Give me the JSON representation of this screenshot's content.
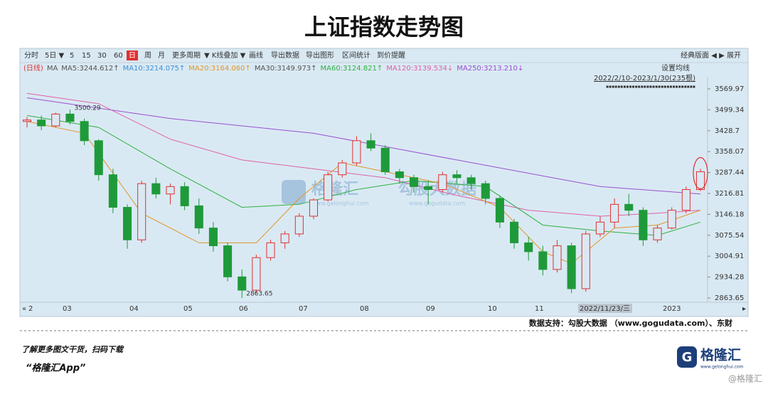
{
  "chart_data": {
    "type": "candlestick",
    "title": "上证指数走势图",
    "toolbar": [
      "分时",
      "5日 ▼",
      "5",
      "15",
      "30",
      "60",
      "日",
      "周",
      "月",
      "更多周期",
      "▼ K线叠加 ▼",
      "画线",
      "导出数据",
      "导出图形",
      "区间统计",
      "到价提醒"
    ],
    "toolbar_right": "经典版面 ◀ ▶ 展开",
    "ma_legend": [
      {
        "label": "(日线)",
        "color": "#e03030"
      },
      {
        "label": "MA",
        "color": "#555555"
      },
      {
        "label": "MA5:3244.612↑",
        "color": "#555555"
      },
      {
        "label": "MA10:3214.075↑",
        "color": "#3b8fd9"
      },
      {
        "label": "MA20:3164.060↑",
        "color": "#e0962a"
      },
      {
        "label": "MA30:3149.973↑",
        "color": "#555555"
      },
      {
        "label": "MA60:3124.821↑",
        "color": "#2fb040"
      },
      {
        "label": "MA120:3139.534↓",
        "color": "#e060a8"
      },
      {
        "label": "MA250:3213.210↓",
        "color": "#9a50d0"
      }
    ],
    "settings_label": "设置均线",
    "range_label": "2022/2/10-2023/1/30(235根)",
    "ylim": [
      2863.65,
      3569.97
    ],
    "yticks": [
      3569.97,
      3499.34,
      3428.7,
      3358.07,
      3287.44,
      3216.81,
      3146.18,
      3075.54,
      3004.91,
      2934.28,
      2863.65
    ],
    "x_labels": [
      "2",
      "03",
      "04",
      "05",
      "06",
      "07",
      "08",
      "09",
      "10",
      "11",
      "2022/11/23/三",
      "2023"
    ],
    "open": [
      3460,
      3465,
      3445,
      3485,
      3460,
      3395,
      3280,
      3170,
      3060,
      3250,
      3215,
      3240,
      3175,
      3100,
      3040,
      2935,
      2890,
      3000,
      3050,
      3080,
      3140,
      3195,
      3280,
      3320,
      3395,
      3370,
      3290,
      3270,
      3240,
      3230,
      3280,
      3270,
      3250,
      3200,
      3120,
      3050,
      3020,
      2960,
      3040,
      2895,
      3080,
      3120,
      3180,
      3160,
      3060,
      3100,
      3160,
      3230
    ],
    "high": [
      3475,
      3480,
      3490,
      3500.29,
      3470,
      3400,
      3300,
      3180,
      3260,
      3270,
      3250,
      3255,
      3200,
      3120,
      3050,
      2960,
      3010,
      3060,
      3090,
      3150,
      3200,
      3290,
      3330,
      3410,
      3420,
      3380,
      3300,
      3280,
      3260,
      3290,
      3295,
      3280,
      3260,
      3210,
      3130,
      3070,
      3040,
      3060,
      3050,
      3090,
      3140,
      3200,
      3215,
      3170,
      3110,
      3170,
      3240,
      3300
    ],
    "low": [
      3440,
      3430,
      3440,
      3450,
      3380,
      3260,
      3150,
      3030,
      3050,
      3200,
      3180,
      3160,
      3080,
      3020,
      2920,
      2863.65,
      2880,
      2990,
      3030,
      3070,
      3130,
      3190,
      3270,
      3310,
      3360,
      3280,
      3250,
      3220,
      3180,
      3220,
      3250,
      3230,
      3180,
      3100,
      3030,
      2990,
      2940,
      2950,
      2880,
      2885,
      3070,
      3100,
      3140,
      3040,
      3050,
      3095,
      3150,
      3225
    ],
    "close": [
      3465,
      3445,
      3485,
      3460,
      3395,
      3280,
      3170,
      3060,
      3250,
      3215,
      3240,
      3175,
      3100,
      3040,
      2935,
      2890,
      3000,
      3050,
      3080,
      3140,
      3195,
      3280,
      3320,
      3395,
      3370,
      3290,
      3270,
      3240,
      3230,
      3280,
      3270,
      3250,
      3200,
      3120,
      3050,
      3020,
      2960,
      3040,
      2895,
      3080,
      3120,
      3180,
      3160,
      3060,
      3100,
      3160,
      3230,
      3290
    ],
    "up_color": "#e03030",
    "down_color": "#1f9a3a",
    "lines": [
      {
        "color": "#9a50d0",
        "x": [
          0,
          10,
          20,
          30,
          40,
          47
        ],
        "values": [
          3540,
          3470,
          3420,
          3330,
          3240,
          3215
        ]
      },
      {
        "color": "#e060a8",
        "x": [
          0,
          5,
          10,
          15,
          20,
          25,
          30,
          35,
          40,
          44,
          47
        ],
        "values": [
          3555,
          3520,
          3400,
          3330,
          3300,
          3270,
          3210,
          3160,
          3140,
          3150,
          3160
        ]
      },
      {
        "color": "#2fb040",
        "x": [
          0,
          5,
          10,
          15,
          19,
          23,
          27,
          32,
          36,
          40,
          44,
          47
        ],
        "values": [
          3480,
          3440,
          3300,
          3170,
          3180,
          3230,
          3260,
          3240,
          3110,
          3090,
          3075,
          3120
        ]
      },
      {
        "color": "#e0962a",
        "x": [
          0,
          4,
          8,
          12,
          16,
          19,
          22,
          25,
          29,
          33,
          36,
          38,
          41,
          44,
          47
        ],
        "values": [
          3460,
          3420,
          3150,
          3050,
          3050,
          3200,
          3320,
          3290,
          3250,
          3170,
          3020,
          2980,
          3100,
          3110,
          3160
        ]
      }
    ],
    "annotations": [
      "3500.29",
      "2863.65"
    ],
    "watermarks": [
      "格隆汇",
      "www.gelonghui.com",
      "勾股大数据",
      "www.gogudata.com"
    ],
    "source": "数据支持：勾股大数据 （www.gogudata.com）、东财",
    "promo_line1": "了解更多图文干货，扫码下载",
    "promo_line2": "“格隆汇App”",
    "logo": "格隆汇",
    "logo_sub": "www.gelonghui.com",
    "corner_mark": "@格隆汇"
  }
}
